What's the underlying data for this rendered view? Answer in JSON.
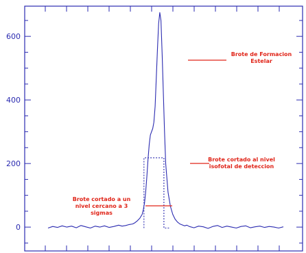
{
  "chart_data": {
    "type": "line",
    "title": "",
    "xlabel": "",
    "ylabel": "",
    "ylim": [
      -75,
      695
    ],
    "yticks": [
      0,
      200,
      400,
      600
    ],
    "grid": false,
    "series": [
      {
        "style": "solid",
        "x": [
          0,
          4,
          8,
          12,
          16,
          20,
          24,
          28,
          32,
          36,
          40,
          44,
          48,
          52,
          56,
          60,
          63,
          66,
          69,
          72,
          74,
          76,
          78,
          80,
          81,
          82,
          83,
          84,
          85,
          86,
          87,
          88,
          89,
          90,
          91,
          92,
          93,
          94,
          95,
          96,
          97,
          98,
          99,
          100,
          102,
          104,
          106,
          108,
          110,
          112,
          114,
          116,
          118,
          120,
          124,
          128,
          132,
          136,
          140,
          144,
          148,
          152,
          156,
          160,
          164,
          168,
          172,
          176,
          180,
          184,
          188,
          192,
          196,
          200
        ],
        "y": [
          -3,
          2,
          -1,
          4,
          0,
          3,
          -2,
          5,
          1,
          -3,
          3,
          0,
          4,
          -1,
          2,
          6,
          3,
          5,
          8,
          10,
          14,
          20,
          28,
          40,
          55,
          75,
          110,
          160,
          215,
          260,
          290,
          300,
          310,
          330,
          380,
          470,
          560,
          640,
          675,
          650,
          540,
          420,
          300,
          200,
          110,
          65,
          40,
          25,
          16,
          10,
          7,
          4,
          6,
          2,
          -2,
          3,
          1,
          -4,
          2,
          5,
          -1,
          3,
          0,
          -3,
          2,
          4,
          -2,
          1,
          3,
          -1,
          2,
          0,
          -3,
          1
        ]
      },
      {
        "style": "dotted",
        "x": [
          81.5,
          81.5,
          98.5,
          98.5,
          104,
          104
        ],
        "y": [
          -3,
          218,
          218,
          -3,
          -3,
          -3
        ]
      }
    ],
    "annotations": [
      {
        "lines": [
          "Brote de Formacion",
          "Estelar"
        ]
      },
      {
        "lines": [
          "Brote cortado al nivel",
          "isofotal de deteccion"
        ]
      },
      {
        "lines": [
          "Brote cortado a un",
          "nivel cercano a 3",
          "sigmas"
        ]
      }
    ],
    "colors": {
      "axes": "#2a2ab0",
      "line": "#2a2ab0",
      "annotation": "#e02418",
      "background": "#ffffff"
    }
  }
}
